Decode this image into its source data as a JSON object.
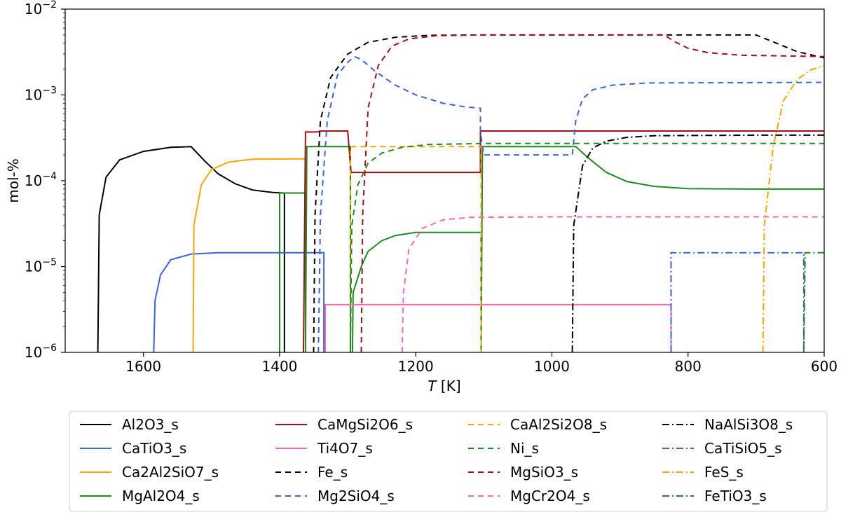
{
  "chart_data": {
    "type": "line",
    "xlabel_italic": "T",
    "xlabel_unit": " [K]",
    "ylabel": "mol-%",
    "x_reversed": true,
    "xlim": [
      1715,
      600
    ],
    "ylim": [
      1e-06,
      0.01
    ],
    "y_scale": "log",
    "x_ticks": [
      1600,
      1400,
      1200,
      1000,
      800,
      600
    ],
    "y_tick_labels": [
      {
        "value": 0.01,
        "exp": "−2"
      },
      {
        "value": 0.001,
        "exp": "−3"
      },
      {
        "value": 0.0001,
        "exp": "−4"
      },
      {
        "value": 1e-05,
        "exp": "−5"
      },
      {
        "value": 1e-06,
        "exp": "−6"
      }
    ],
    "y_tick_base": "10",
    "legend_placement": "below",
    "series": [
      {
        "name": "Al2O3_s",
        "color": "#000000",
        "dash": "solid",
        "points": [
          [
            1667,
            1e-06
          ],
          [
            1665,
            4e-05
          ],
          [
            1655,
            0.00011
          ],
          [
            1635,
            0.000175
          ],
          [
            1600,
            0.00022
          ],
          [
            1560,
            0.000245
          ],
          [
            1530,
            0.00025
          ],
          [
            1510,
            0.00017
          ],
          [
            1490,
            0.00012
          ],
          [
            1465,
            9.2e-05
          ],
          [
            1440,
            7.8e-05
          ],
          [
            1410,
            7.3e-05
          ],
          [
            1393,
            7.2e-05
          ],
          [
            1393,
            1e-06
          ]
        ]
      },
      {
        "name": "CaTiO3_s",
        "color": "#3a66d6",
        "dash": "solid",
        "points": [
          [
            1585,
            1e-06
          ],
          [
            1583,
            4e-06
          ],
          [
            1575,
            8e-06
          ],
          [
            1560,
            1.2e-05
          ],
          [
            1530,
            1.4e-05
          ],
          [
            1490,
            1.45e-05
          ],
          [
            1335,
            1.45e-05
          ],
          [
            1335,
            1e-06
          ]
        ]
      },
      {
        "name": "Ca2Al2SiO7_s",
        "color": "#ffa500",
        "dash": "solid",
        "points": [
          [
            1527,
            1e-06
          ],
          [
            1526,
            3e-05
          ],
          [
            1515,
            9e-05
          ],
          [
            1500,
            0.000135
          ],
          [
            1475,
            0.000165
          ],
          [
            1440,
            0.000178
          ],
          [
            1362,
            0.00018
          ],
          [
            1362,
            1e-06
          ]
        ]
      },
      {
        "name": "MgAl2O4_s",
        "color": "#1f8a1f",
        "dash": "solid",
        "points": [
          [
            1400,
            1e-06
          ],
          [
            1400,
            7.2e-05
          ],
          [
            1362,
            7.2e-05
          ],
          [
            1362,
            1e-06
          ],
          [
            1360,
            0.00025
          ],
          [
            1296,
            0.00025
          ],
          [
            1296,
            1e-06
          ],
          [
            1293,
            1e-06
          ],
          [
            1292,
            5e-06
          ],
          [
            1280,
            1e-05
          ],
          [
            1270,
            1.5e-05
          ],
          [
            1250,
            2e-05
          ],
          [
            1230,
            2.3e-05
          ],
          [
            1200,
            2.5e-05
          ],
          [
            1165,
            2.5e-05
          ],
          [
            1104,
            2.5e-05
          ],
          [
            1104,
            1e-06
          ],
          [
            1102,
            0.00025
          ],
          [
            965,
            0.00025
          ],
          [
            945,
            0.00018
          ],
          [
            920,
            0.000125
          ],
          [
            890,
            9.8e-05
          ],
          [
            850,
            8.6e-05
          ],
          [
            800,
            8.1e-05
          ],
          [
            700,
            8e-05
          ],
          [
            600,
            8e-05
          ]
        ]
      },
      {
        "name": "CaMgSi2O6_s",
        "color": "#a50f15",
        "dash": "solid",
        "points": [
          [
            1365,
            1e-06
          ],
          [
            1362,
            0.00037
          ],
          [
            1345,
            0.00037
          ],
          [
            1340,
            0.00038
          ],
          [
            1300,
            0.00038
          ],
          [
            1295,
            0.000125
          ],
          [
            1105,
            0.000125
          ],
          [
            1105,
            0.00038
          ],
          [
            600,
            0.00038
          ]
        ]
      },
      {
        "name": "Ti4O7_s",
        "color": "#ff69b4",
        "dash": "solid",
        "points": [
          [
            1333,
            1e-06
          ],
          [
            1333,
            3.6e-06
          ],
          [
            825,
            3.6e-06
          ],
          [
            825,
            1e-06
          ]
        ]
      },
      {
        "name": "Fe_s",
        "color": "#000000",
        "dash": "8,6",
        "points": [
          [
            1350,
            1e-06
          ],
          [
            1348,
            4e-05
          ],
          [
            1340,
            0.0005
          ],
          [
            1325,
            0.0016
          ],
          [
            1300,
            0.003
          ],
          [
            1270,
            0.0041
          ],
          [
            1230,
            0.0047
          ],
          [
            1180,
            0.00495
          ],
          [
            1100,
            0.005
          ],
          [
            700,
            0.005
          ],
          [
            670,
            0.004
          ],
          [
            640,
            0.0032
          ],
          [
            600,
            0.0027
          ]
        ]
      },
      {
        "name": "Mg2SiO4_s",
        "color": "#3a66d6",
        "dash": "8,6",
        "points": [
          [
            1343,
            1e-06
          ],
          [
            1340,
            4e-05
          ],
          [
            1330,
            0.0005
          ],
          [
            1315,
            0.0017
          ],
          [
            1300,
            0.0024
          ],
          [
            1290,
            0.0028
          ],
          [
            1280,
            0.0026
          ],
          [
            1260,
            0.0019
          ],
          [
            1230,
            0.0013
          ],
          [
            1200,
            0.001
          ],
          [
            1160,
            0.0008
          ],
          [
            1130,
            0.00073
          ],
          [
            1105,
            0.0007
          ],
          [
            1105,
            0.00037
          ],
          [
            1100,
            0.0002
          ],
          [
            970,
            0.0002
          ],
          [
            965,
            0.0005
          ],
          [
            955,
            0.0009
          ],
          [
            940,
            0.00115
          ],
          [
            910,
            0.0013
          ],
          [
            860,
            0.00138
          ],
          [
            600,
            0.0014
          ]
        ]
      },
      {
        "name": "CaAl2Si2O8_s",
        "color": "#ffa500",
        "dash": "8,6",
        "points": [
          [
            1296,
            1e-06
          ],
          [
            1296,
            0.00025
          ],
          [
            1104,
            0.00025
          ],
          [
            1104,
            1e-06
          ]
        ]
      },
      {
        "name": "Ni_s",
        "color": "#1f8a1f",
        "dash": "8,6",
        "points": [
          [
            1296,
            1e-06
          ],
          [
            1294,
            3e-05
          ],
          [
            1285,
            9e-05
          ],
          [
            1270,
            0.00016
          ],
          [
            1250,
            0.00021
          ],
          [
            1220,
            0.000245
          ],
          [
            1180,
            0.000265
          ],
          [
            1100,
            0.000272
          ],
          [
            600,
            0.000272
          ]
        ]
      },
      {
        "name": "MgSiO3_s",
        "color": "#a50f15",
        "dash": "8,6",
        "points": [
          [
            1280,
            1e-06
          ],
          [
            1278,
            4e-05
          ],
          [
            1270,
            0.0007
          ],
          [
            1255,
            0.0022
          ],
          [
            1235,
            0.0037
          ],
          [
            1210,
            0.0045
          ],
          [
            1170,
            0.0049
          ],
          [
            1105,
            0.005
          ],
          [
            835,
            0.005
          ],
          [
            820,
            0.0042
          ],
          [
            800,
            0.0035
          ],
          [
            770,
            0.0031
          ],
          [
            720,
            0.0029
          ],
          [
            600,
            0.0028
          ]
        ]
      },
      {
        "name": "MgCr2O4_s",
        "color": "#ff69b4",
        "dash": "8,6",
        "points": [
          [
            1220,
            1e-06
          ],
          [
            1218,
            5e-06
          ],
          [
            1210,
            1.6e-05
          ],
          [
            1190,
            2.8e-05
          ],
          [
            1160,
            3.5e-05
          ],
          [
            1120,
            3.75e-05
          ],
          [
            1000,
            3.8e-05
          ],
          [
            600,
            3.8e-05
          ]
        ]
      },
      {
        "name": "NaAlSi3O8_s",
        "color": "#000000",
        "dash": "10,4,2,4",
        "points": [
          [
            970,
            1e-06
          ],
          [
            968,
            3e-05
          ],
          [
            955,
            0.00015
          ],
          [
            940,
            0.00024
          ],
          [
            920,
            0.00029
          ],
          [
            890,
            0.00032
          ],
          [
            850,
            0.000335
          ],
          [
            700,
            0.00034
          ],
          [
            600,
            0.00034
          ]
        ]
      },
      {
        "name": "CaTiSiO5_s",
        "color": "#3a66d6",
        "dash": "10,4,2,4",
        "points": [
          [
            825,
            1e-06
          ],
          [
            825,
            1.45e-05
          ],
          [
            630,
            1.45e-05
          ],
          [
            630,
            1e-06
          ]
        ]
      },
      {
        "name": "FeS_s",
        "color": "#ffa500",
        "dash": "10,4,2,4",
        "points": [
          [
            690,
            1e-06
          ],
          [
            688,
            3e-05
          ],
          [
            675,
            0.00025
          ],
          [
            660,
            0.00085
          ],
          [
            640,
            0.0015
          ],
          [
            620,
            0.00195
          ],
          [
            600,
            0.0022
          ]
        ]
      },
      {
        "name": "FeTiO3_s",
        "color": "#1f8a1f",
        "dash": "10,4,2,4",
        "points": [
          [
            630,
            1e-06
          ],
          [
            628,
            1.45e-05
          ],
          [
            600,
            1.45e-05
          ]
        ]
      }
    ]
  }
}
